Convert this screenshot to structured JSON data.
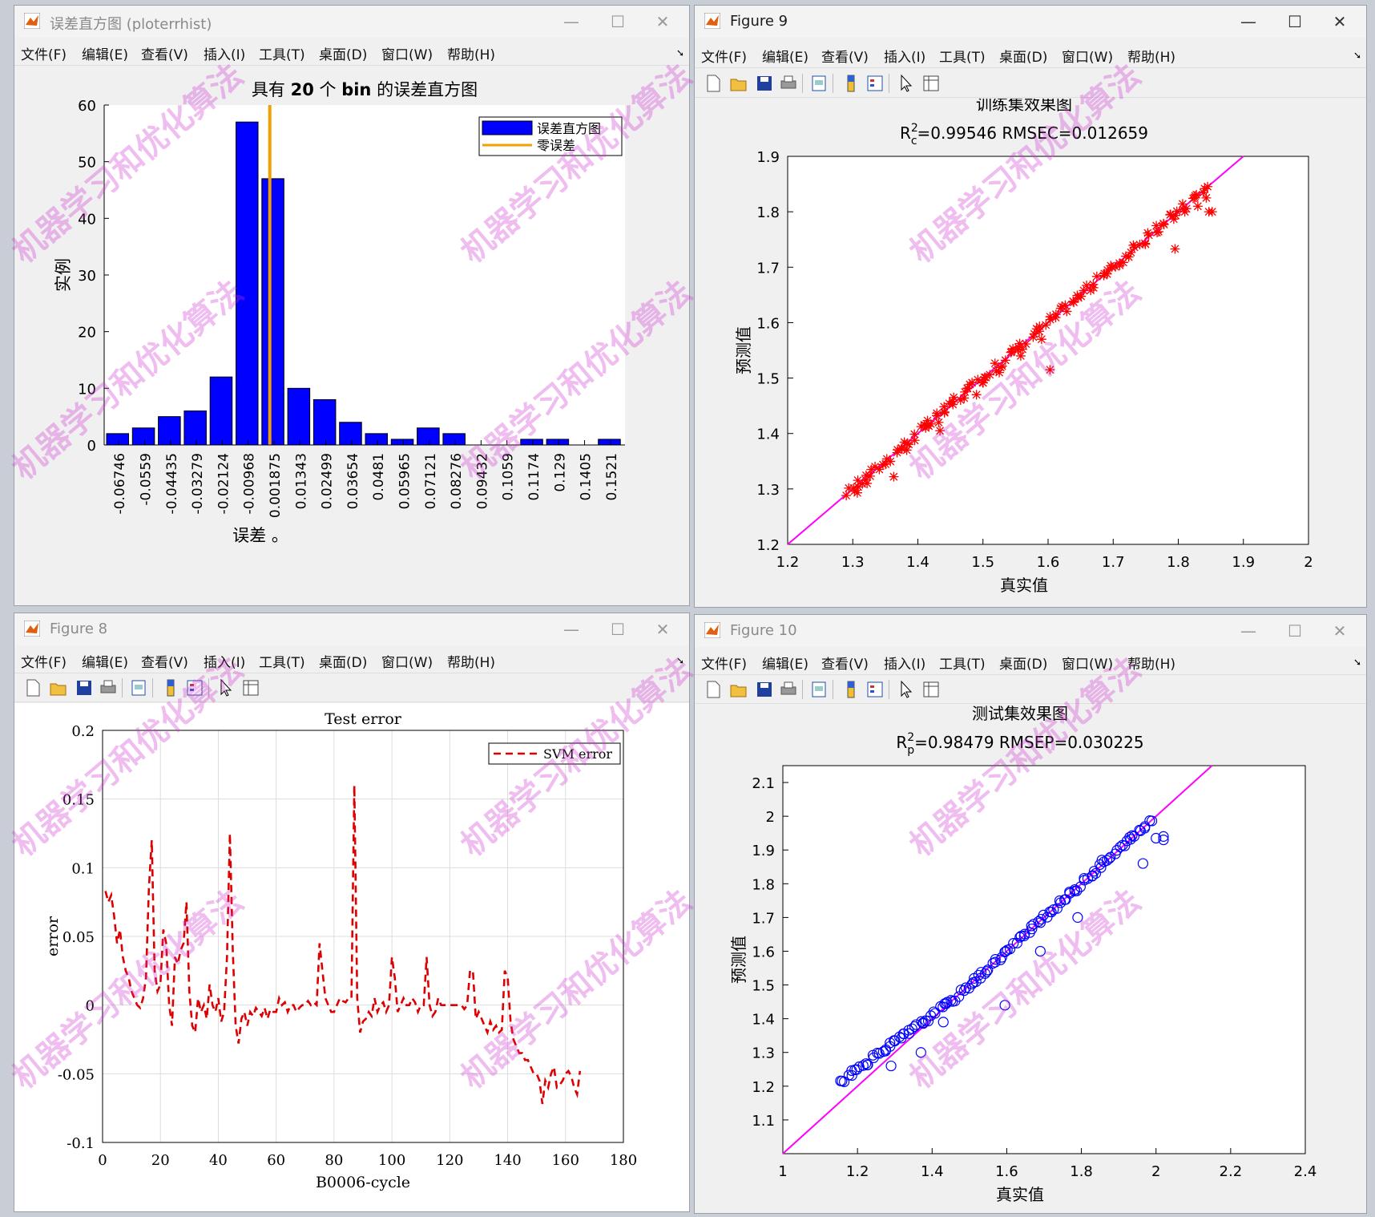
{
  "menu_items": [
    "文件(F)",
    "编辑(E)",
    "查看(V)",
    "插入(I)",
    "工具(T)",
    "桌面(D)",
    "窗口(W)",
    "帮助(H)"
  ],
  "window_controls": {
    "minimize": "—",
    "maximize": "☐",
    "close": "✕"
  },
  "toolbar_icons": [
    "new-file-icon",
    "open-folder-icon",
    "save-icon",
    "print-icon",
    "print-preview-icon",
    "colorbar-icon",
    "legend-icon",
    "pointer-icon",
    "property-editor-icon"
  ],
  "windows": {
    "hist": {
      "title": "误差直方图 (ploterrhist)"
    },
    "fig9": {
      "title": "Figure 9"
    },
    "fig8": {
      "title": "Figure 8"
    },
    "fig10": {
      "title": "Figure 10"
    }
  },
  "watermark": "机器学习和优化算法",
  "chart_data": [
    {
      "type": "bar",
      "title_prefix": "具有 ",
      "title_bold": "20",
      "title_mid": " 个 ",
      "title_bold2": "bin",
      "title_suffix": " 的误差直方图",
      "xlabel": "误差 。",
      "ylabel": "实例",
      "ylim": [
        0,
        60
      ],
      "yticks": [
        0,
        10,
        20,
        30,
        40,
        50,
        60
      ],
      "categories": [
        "-0.06746",
        "-0.0559",
        "-0.04435",
        "-0.03279",
        "-0.02124",
        "-0.00968",
        "0.001875",
        "0.01343",
        "0.02499",
        "0.03654",
        "0.0481",
        "0.05965",
        "0.07121",
        "0.08276",
        "0.09432",
        "0.1059",
        "0.1174",
        "0.129",
        "0.1405",
        "0.1521"
      ],
      "values": [
        2,
        3,
        5,
        6,
        12,
        57,
        47,
        10,
        8,
        4,
        2,
        1,
        3,
        2,
        0,
        0,
        1,
        1,
        0,
        1
      ],
      "zero_error_line": 0,
      "legend": [
        {
          "name": "误差直方图",
          "color": "#0000ff"
        },
        {
          "name": "零误差",
          "color": "#f0a000"
        }
      ],
      "colors": {
        "bar": "#0000ff",
        "zero_line": "#f0a000"
      }
    },
    {
      "type": "scatter",
      "title": "训练集效果图",
      "subtitle_parts": [
        "R",
        "2",
        "c",
        "=0.99546  RMSEC=0.012659"
      ],
      "xlabel": "真实值",
      "ylabel": "预测值",
      "xlim": [
        1.2,
        2.0
      ],
      "ylim": [
        1.2,
        1.9
      ],
      "xticks": [
        "1.2",
        "1.3",
        "1.4",
        "1.5",
        "1.6",
        "1.7",
        "1.8",
        "1.9",
        "2"
      ],
      "yticks": [
        "1.2",
        "1.3",
        "1.4",
        "1.5",
        "1.6",
        "1.7",
        "1.8",
        "1.9"
      ],
      "marker": "*",
      "colors": {
        "marker": "#ff0000",
        "fit_line": "#ff00ff"
      },
      "fit_line": [
        [
          1.2,
          1.2
        ],
        [
          1.9,
          1.9
        ]
      ],
      "outliers": [
        [
          1.307,
          1.293
        ],
        [
          1.322,
          1.31
        ],
        [
          1.363,
          1.322
        ],
        [
          1.383,
          1.37
        ],
        [
          1.412,
          1.41
        ],
        [
          1.434,
          1.405
        ],
        [
          1.432,
          1.42
        ],
        [
          1.455,
          1.465
        ],
        [
          1.49,
          1.47
        ],
        [
          1.525,
          1.51
        ],
        [
          1.558,
          1.54
        ],
        [
          1.59,
          1.57
        ],
        [
          1.603,
          1.515
        ],
        [
          1.698,
          1.7
        ],
        [
          1.795,
          1.733
        ],
        [
          1.81,
          1.8
        ],
        [
          1.847,
          1.8
        ],
        [
          1.852,
          1.8
        ],
        [
          1.83,
          1.81
        ],
        [
          1.843,
          1.825
        ]
      ],
      "trend_x_range": [
        1.29,
        1.845
      ]
    },
    {
      "type": "line",
      "title": "Test error",
      "xlabel": "B0006-cycle",
      "ylabel": "error",
      "xlim": [
        0,
        180
      ],
      "ylim": [
        -0.1,
        0.2
      ],
      "xticks": [
        "0",
        "20",
        "40",
        "60",
        "80",
        "100",
        "120",
        "140",
        "160",
        "180"
      ],
      "yticks": [
        "-0.1",
        "-0.05",
        "0",
        "0.05",
        "0.1",
        "0.15",
        "0.2"
      ],
      "grid": true,
      "legend": "top-right",
      "series": [
        {
          "name": "SVM error",
          "color": "#dd0000",
          "style": "dashed",
          "x": [
            1,
            2,
            3,
            4,
            5,
            6,
            7,
            8,
            9,
            10,
            11,
            12,
            13,
            14,
            15,
            16,
            17,
            18,
            19,
            20,
            21,
            22,
            23,
            24,
            25,
            26,
            27,
            28,
            29,
            30,
            31,
            32,
            33,
            34,
            35,
            36,
            37,
            38,
            39,
            40,
            41,
            42,
            43,
            44,
            45,
            46,
            47,
            48,
            49,
            50,
            51,
            52,
            53,
            54,
            55,
            56,
            57,
            58,
            59,
            60,
            61,
            62,
            63,
            64,
            65,
            66,
            67,
            68,
            69,
            70,
            71,
            72,
            73,
            74,
            75,
            76,
            77,
            78,
            79,
            80,
            81,
            82,
            83,
            84,
            85,
            86,
            87,
            88,
            89,
            90,
            91,
            92,
            93,
            94,
            95,
            96,
            97,
            98,
            99,
            100,
            101,
            102,
            103,
            104,
            105,
            106,
            107,
            108,
            109,
            110,
            111,
            112,
            113,
            114,
            115,
            116,
            117,
            118,
            119,
            120,
            121,
            122,
            123,
            124,
            125,
            126,
            127,
            128,
            129,
            130,
            131,
            132,
            133,
            134,
            135,
            136,
            137,
            138,
            139,
            140,
            141,
            142,
            143,
            144,
            145,
            146,
            147,
            148,
            149,
            150,
            151,
            152,
            153,
            154,
            155,
            156,
            157,
            158,
            159,
            160,
            161,
            162,
            163,
            164,
            165
          ],
          "values": [
            0.083,
            0.075,
            0.08,
            0.065,
            0.045,
            0.055,
            0.035,
            0.025,
            0.02,
            0.01,
            0.005,
            0.0,
            -0.002,
            0.005,
            0.02,
            0.085,
            0.12,
            0.025,
            0.01,
            0.015,
            0.055,
            0.045,
            0.0,
            -0.015,
            0.035,
            0.03,
            0.04,
            0.045,
            0.075,
            0.01,
            -0.015,
            -0.02,
            0.005,
            -0.005,
            0.0,
            -0.01,
            0.015,
            0.0,
            -0.005,
            0.005,
            -0.012,
            -0.005,
            0.035,
            0.125,
            0.04,
            -0.015,
            -0.028,
            -0.01,
            -0.005,
            -0.015,
            -0.005,
            -0.008,
            -0.002,
            -0.005,
            -0.008,
            -0.002,
            -0.01,
            -0.003,
            -0.005,
            -0.005,
            0.005,
            0.0,
            0.002,
            -0.005,
            0.0,
            0.0,
            -0.005,
            -0.002,
            0.0,
            0.0,
            0.003,
            0.0,
            0.002,
            0.0,
            0.045,
            0.025,
            0.005,
            0.0,
            -0.005,
            -0.005,
            0.0,
            0.005,
            0.003,
            0.002,
            0.005,
            0.005,
            0.16,
            0.005,
            -0.02,
            -0.012,
            -0.01,
            -0.005,
            -0.008,
            0.005,
            -0.005,
            0.0,
            0.002,
            -0.005,
            0.0,
            0.035,
            0.02,
            -0.005,
            0.0,
            0.005,
            0.0,
            0.0,
            0.005,
            0.002,
            -0.005,
            0.0,
            0.0,
            0.035,
            0.0,
            -0.008,
            -0.005,
            0.005,
            0.0,
            0.0,
            0.0,
            0.0,
            0.0,
            0.0,
            0.0,
            0.0,
            -0.003,
            0.0,
            0.025,
            0.025,
            -0.01,
            -0.005,
            -0.01,
            -0.015,
            -0.02,
            -0.012,
            -0.018,
            -0.015,
            -0.02,
            -0.018,
            0.025,
            0.02,
            -0.012,
            -0.025,
            -0.03,
            -0.035,
            -0.035,
            -0.04,
            -0.04,
            -0.045,
            -0.05,
            -0.05,
            -0.055,
            -0.072,
            -0.055,
            -0.06,
            -0.05,
            -0.045,
            -0.06,
            -0.058,
            -0.055,
            -0.05,
            -0.048,
            -0.052,
            -0.06,
            -0.065,
            -0.048
          ]
        }
      ]
    },
    {
      "type": "scatter",
      "title": "测试集效果图",
      "subtitle_parts": [
        "R",
        "2",
        "p",
        "=0.98479  RMSEP=0.030225"
      ],
      "xlabel": "真实值",
      "ylabel": "预测值",
      "xlim": [
        1.0,
        2.4
      ],
      "ylim": [
        1.0,
        2.15
      ],
      "xticks": [
        "1",
        "1.2",
        "1.4",
        "1.6",
        "1.8",
        "2",
        "2.2",
        "2.4"
      ],
      "yticks": [
        "1.1",
        "1.2",
        "1.3",
        "1.4",
        "1.5",
        "1.6",
        "1.7",
        "1.8",
        "1.9",
        "2",
        "2.1"
      ],
      "marker": "o",
      "colors": {
        "marker": "#0000ff",
        "fit_line": "#ff00ff"
      },
      "fit_line": [
        [
          1.0,
          1.0
        ],
        [
          2.15,
          2.15
        ]
      ],
      "outliers": [
        [
          1.595,
          1.44
        ],
        [
          1.79,
          1.7
        ],
        [
          1.965,
          1.86
        ],
        [
          2.0,
          1.935
        ],
        [
          2.02,
          1.93
        ],
        [
          2.02,
          1.94
        ],
        [
          1.855,
          1.87
        ],
        [
          1.69,
          1.6
        ],
        [
          1.53,
          1.52
        ],
        [
          1.43,
          1.39
        ],
        [
          1.37,
          1.3
        ],
        [
          1.29,
          1.26
        ]
      ],
      "trend_x_range": [
        1.155,
        1.985
      ]
    }
  ]
}
